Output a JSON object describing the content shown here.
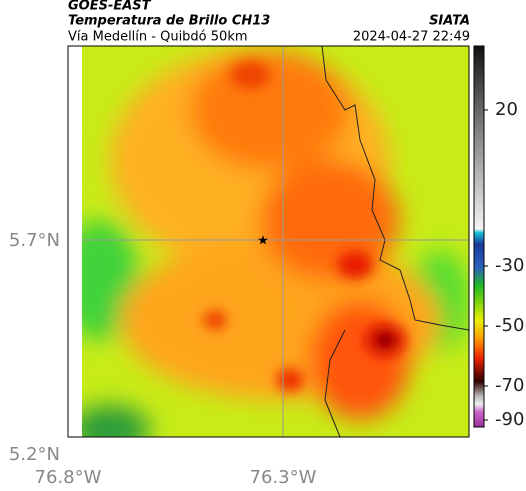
{
  "header": {
    "product": "GOES-EAST",
    "title": "Temperatura de Brillo CH13",
    "source": "SIATA",
    "subtitle": "Vía Medellín - Quibdó 50km",
    "datetime": "2024-04-27 22:49"
  },
  "map": {
    "lat_labels": [
      "5.7°N",
      "5.2°N"
    ],
    "lon_labels": [
      "76.8°W",
      "76.3°W"
    ]
  },
  "colorbar": {
    "ticks": [
      20,
      -30,
      -50,
      -70,
      -90
    ]
  }
}
